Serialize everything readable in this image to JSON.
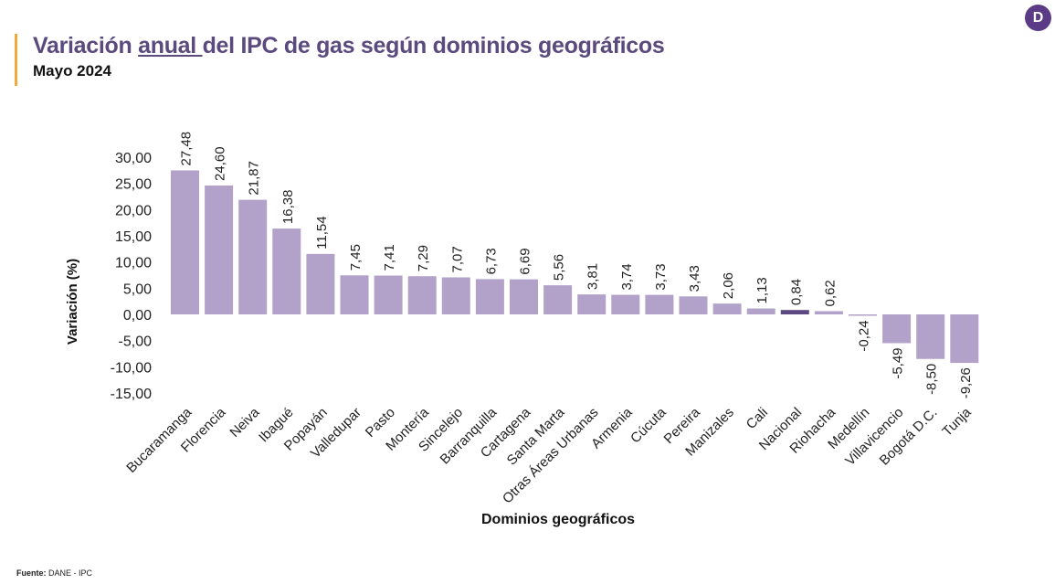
{
  "header": {
    "title_pre": "Variación ",
    "title_underlined": "anual ",
    "title_post": "del IPC de gas según dominios geográficos",
    "subtitle": "Mayo 2024",
    "logo": "D"
  },
  "source": {
    "label": "Fuente:",
    "value": " DANE - IPC"
  },
  "colors": {
    "bar": "#b2a2c9",
    "highlight": "#5e4a82",
    "title": "#5b4a7d",
    "accent": "#f2a93b"
  },
  "chart_data": {
    "type": "bar",
    "xlabel": "Dominios geográficos",
    "ylabel": "Variación (%)",
    "ylim": [
      -15,
      30
    ],
    "yticks": [
      "30,00",
      "25,00",
      "20,00",
      "15,00",
      "10,00",
      "5,00",
      "0,00",
      "-5,00",
      "-10,00",
      "-15,00"
    ],
    "ytick_values": [
      30,
      25,
      20,
      15,
      10,
      5,
      0,
      -5,
      -10,
      -15
    ],
    "categories": [
      "Bucaramanga",
      "Florencia",
      "Neiva",
      "Ibagué",
      "Popayán",
      "Valledupar",
      "Pasto",
      "Montería",
      "Sincelejo",
      "Barranquilla",
      "Cartagena",
      "Santa Marta",
      "Otras Áreas Urbanas",
      "Armenia",
      "Cúcuta",
      "Pereira",
      "Manizales",
      "Cali",
      "Nacional",
      "Riohacha",
      "Medellín",
      "Villavicencio",
      "Bogotá D.C.",
      "Tunja"
    ],
    "values": [
      27.48,
      24.6,
      21.87,
      16.38,
      11.54,
      7.45,
      7.41,
      7.29,
      7.07,
      6.73,
      6.69,
      5.56,
      3.81,
      3.74,
      3.73,
      3.43,
      2.06,
      1.13,
      0.84,
      0.62,
      -0.24,
      -5.49,
      -8.5,
      -9.26
    ],
    "labels": [
      "27,48",
      "24,60",
      "21,87",
      "16,38",
      "11,54",
      "7,45",
      "7,41",
      "7,29",
      "7,07",
      "6,73",
      "6,69",
      "5,56",
      "3,81",
      "3,74",
      "3,73",
      "3,43",
      "2,06",
      "1,13",
      "0,84",
      "0,62",
      "-0,24",
      "-5,49",
      "-8,50",
      "-9,26"
    ],
    "highlight": "Nacional"
  }
}
